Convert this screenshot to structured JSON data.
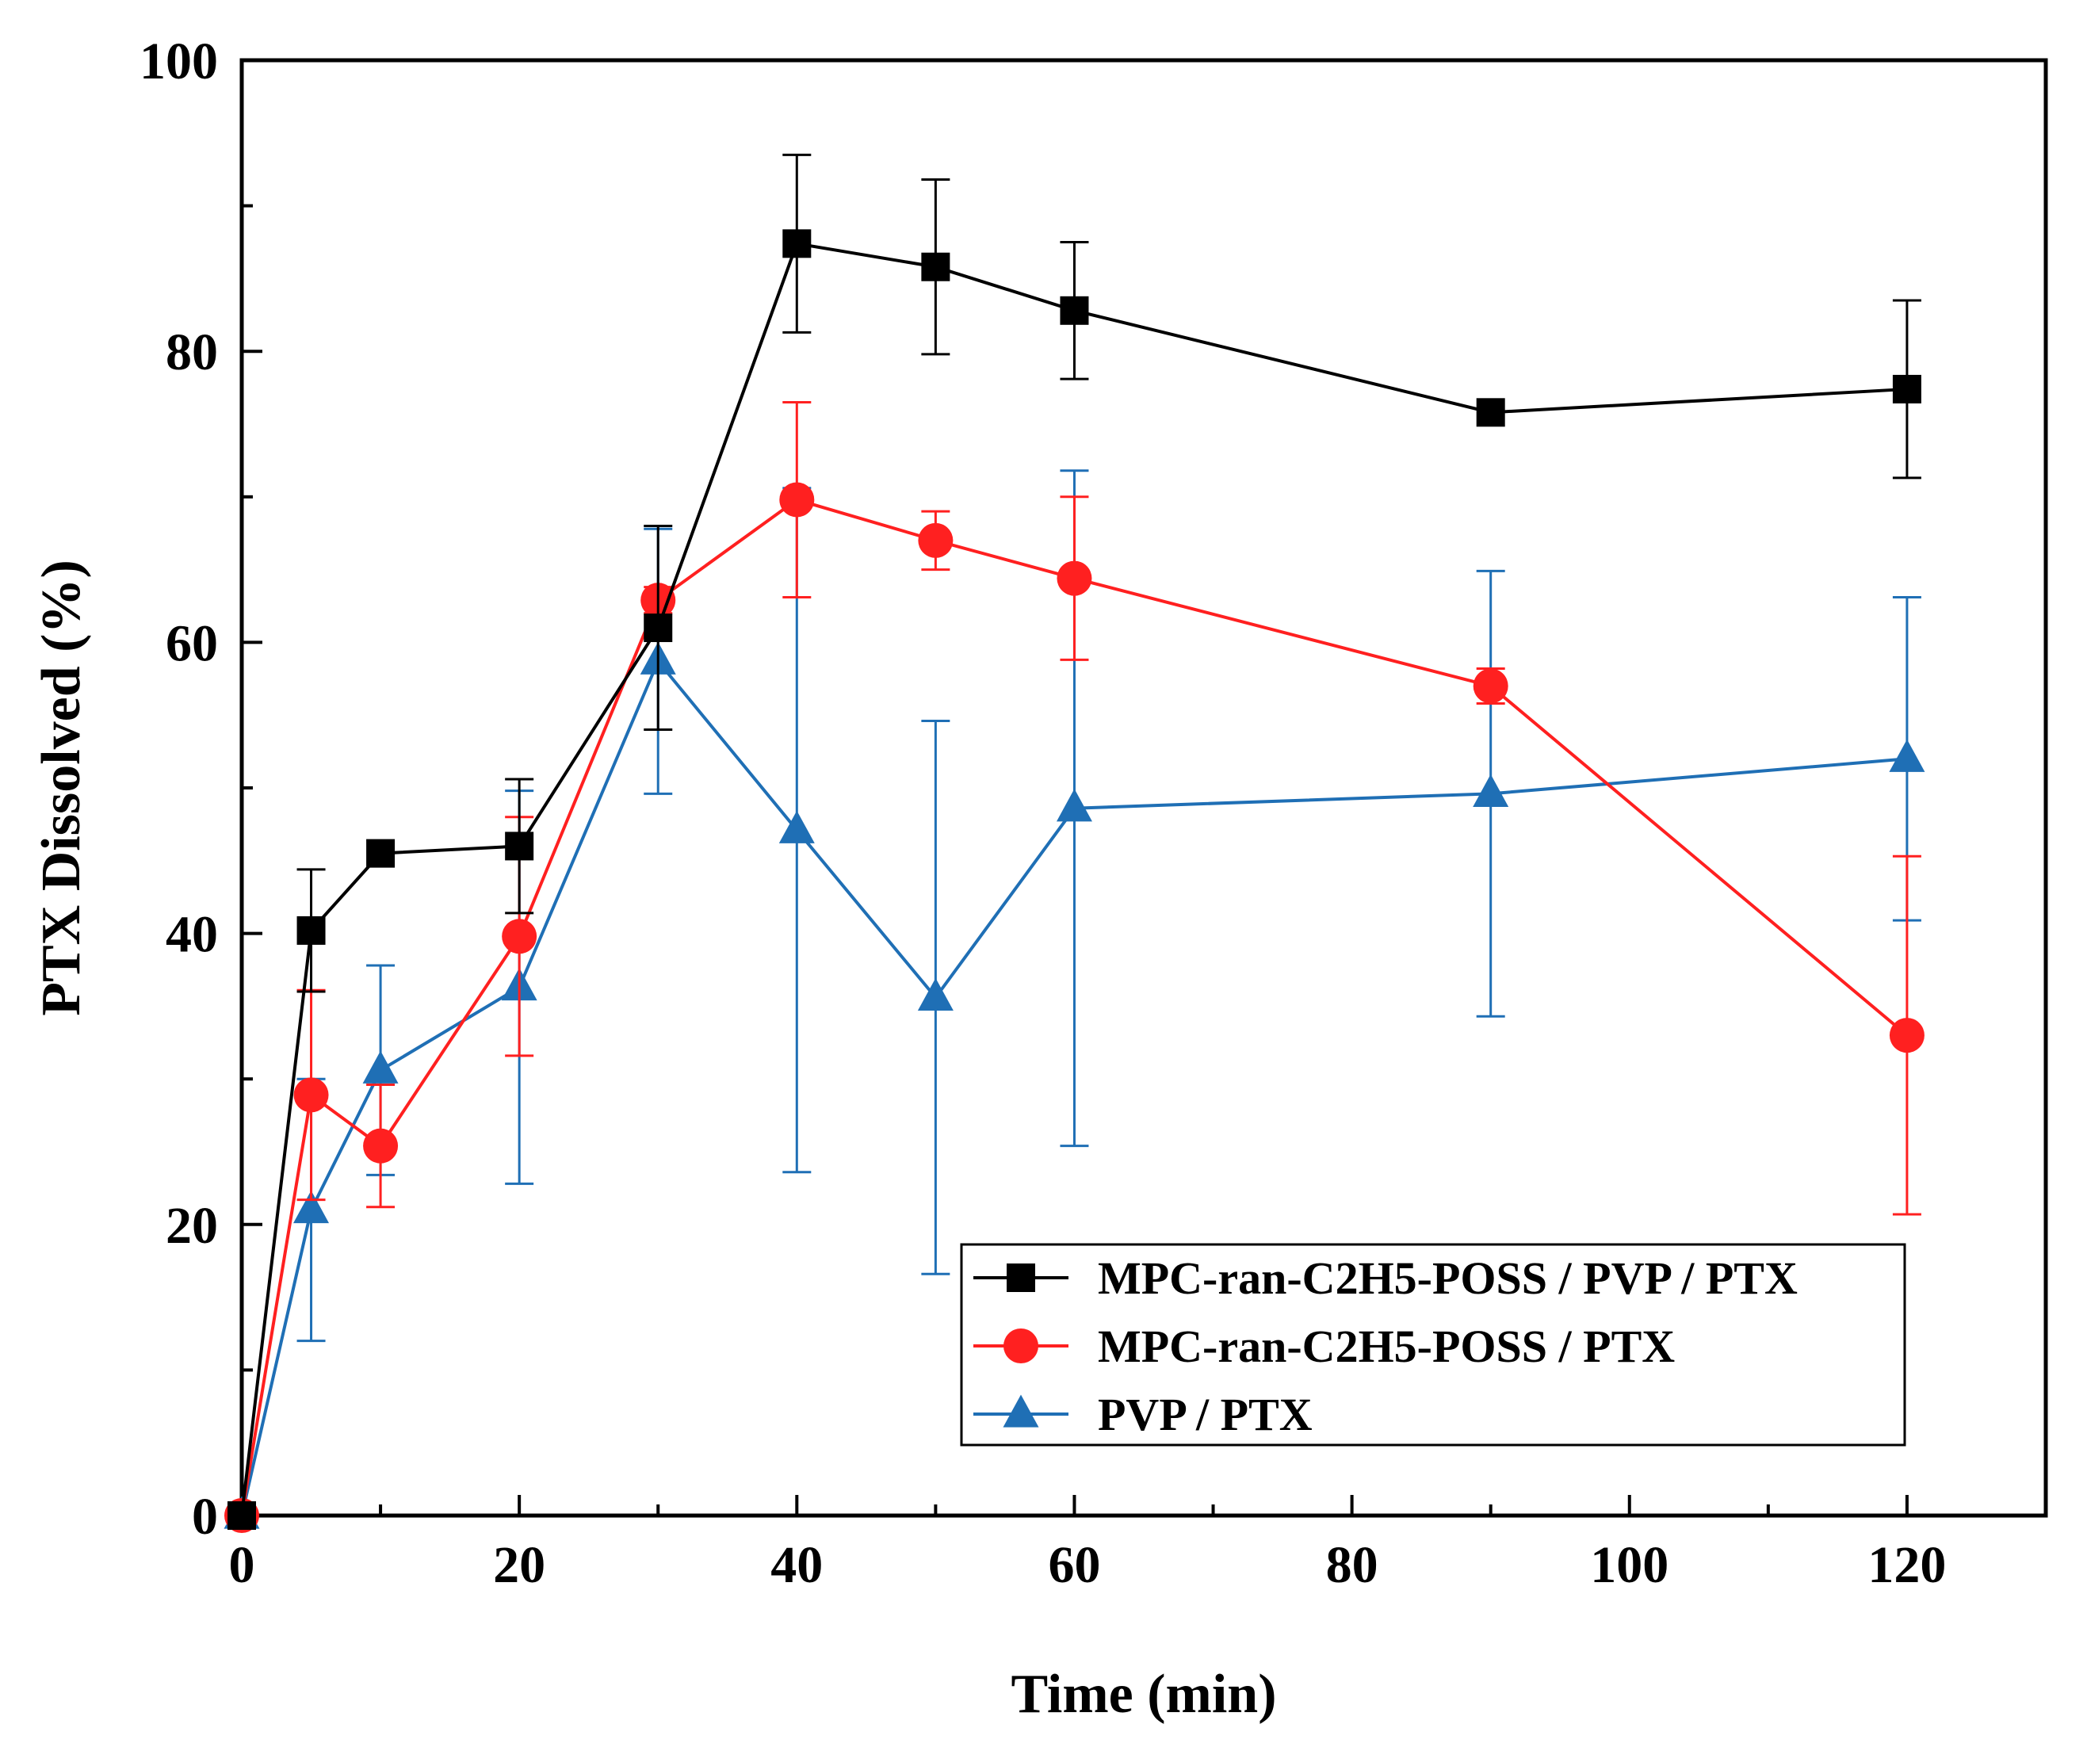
{
  "chart_data": {
    "type": "line",
    "title": "",
    "xlabel": "Time (min)",
    "ylabel": "PTX Dissolved (%)",
    "xlim": [
      0,
      130
    ],
    "ylim": [
      0,
      100
    ],
    "xticks": [
      0,
      20,
      40,
      60,
      80,
      100,
      120
    ],
    "xminor": [
      10,
      30,
      50,
      70,
      90,
      110,
      130
    ],
    "yticks": [
      0,
      20,
      40,
      60,
      80,
      100
    ],
    "yminor": [
      10,
      30,
      50,
      70,
      90
    ],
    "grid": false,
    "legend_position": "bottom-right",
    "x": [
      0,
      5,
      10,
      20,
      30,
      40,
      50,
      60,
      90,
      120
    ],
    "series": [
      {
        "name": "MPC-ran-C2H5-POSS / PVP / PTX",
        "color": "#000000",
        "marker": "square",
        "values": [
          0,
          40.2,
          45.5,
          46.0,
          61.0,
          87.4,
          85.8,
          82.8,
          75.8,
          77.4
        ],
        "errors": [
          0,
          4.2,
          0,
          4.6,
          7.0,
          6.1,
          6.0,
          4.7,
          0,
          6.1
        ]
      },
      {
        "name": "MPC-ran-C2H5-POSS / PTX",
        "color": "#ff2020",
        "marker": "circle",
        "values": [
          0,
          28.9,
          25.4,
          39.8,
          62.9,
          69.8,
          67.0,
          64.4,
          57.0,
          33.0
        ],
        "errors": [
          0,
          7.2,
          4.2,
          8.2,
          0.9,
          6.7,
          2.0,
          5.6,
          1.2,
          12.3
        ]
      },
      {
        "name": "PVP / PTX",
        "color": "#1f6fb5",
        "marker": "triangle",
        "values": [
          0,
          21.0,
          30.6,
          36.3,
          58.7,
          47.1,
          35.6,
          48.6,
          49.6,
          52.0
        ],
        "errors": [
          0,
          9.0,
          7.2,
          13.5,
          9.1,
          23.5,
          19.0,
          23.2,
          15.3,
          11.1
        ]
      }
    ]
  }
}
